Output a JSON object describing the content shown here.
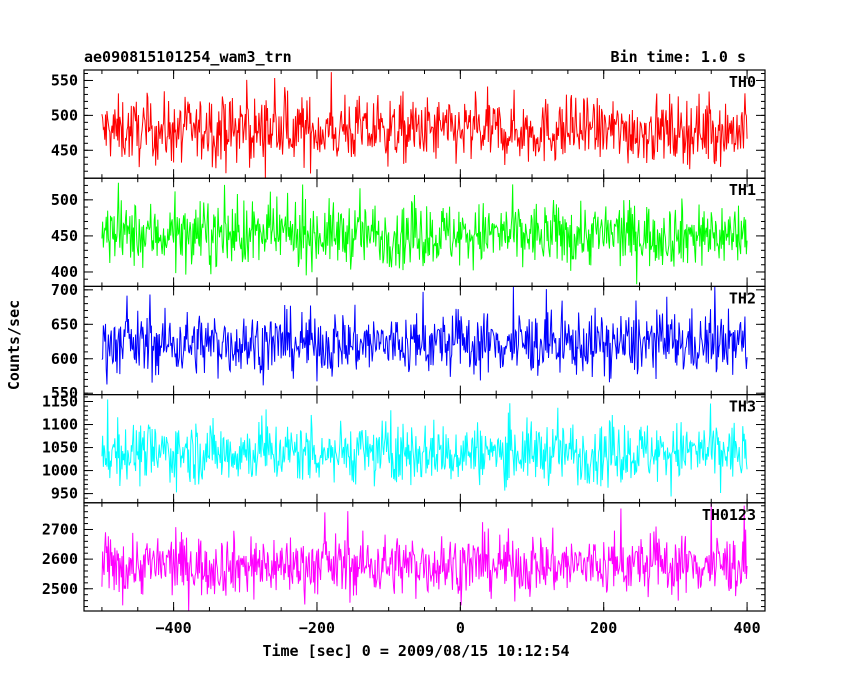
{
  "header": {
    "title": "ae090815101254_wam3_trn",
    "bin_time": "Bin time: 1.0 s"
  },
  "chart_data": {
    "type": "line",
    "xlabel": "Time [sec] 0 = 2009/08/15 10:12:54",
    "ylabel": "Counts/sec",
    "x_range": [
      -500,
      400
    ],
    "xlim": [
      -525,
      425
    ],
    "x_ticks": [
      -400,
      -200,
      0,
      200,
      400
    ],
    "x_tick_labels": [
      "−400",
      "−200",
      "0",
      "200",
      "400"
    ],
    "bin_seconds": 1.0,
    "panels": [
      {
        "name": "TH0",
        "color": "#ff0000",
        "ylim": [
          410,
          565
        ],
        "mean": 478,
        "noise_amp": 30,
        "spike_range": [
          445,
          570
        ],
        "y_ticks": [
          450,
          500,
          550
        ],
        "y_tick_labels": [
          "450",
          "500",
          "550"
        ]
      },
      {
        "name": "TH1",
        "color": "#00ff00",
        "ylim": [
          380,
          530
        ],
        "mean": 452,
        "noise_amp": 28,
        "spike_range": [
          400,
          530
        ],
        "y_ticks": [
          400,
          450,
          500
        ],
        "y_tick_labels": [
          "400",
          "450",
          "500"
        ]
      },
      {
        "name": "TH2",
        "color": "#0000ff",
        "ylim": [
          548,
          705
        ],
        "mean": 622,
        "noise_amp": 29,
        "spike_range": [
          560,
          705
        ],
        "y_ticks": [
          550,
          600,
          650,
          700
        ],
        "y_tick_labels": [
          "550",
          "600",
          "650",
          "700"
        ]
      },
      {
        "name": "TH3",
        "color": "#00ffff",
        "ylim": [
          930,
          1165
        ],
        "mean": 1040,
        "noise_amp": 42,
        "spike_range": [
          940,
          1160
        ],
        "y_ticks": [
          950,
          1000,
          1050,
          1100,
          1150
        ],
        "y_tick_labels": [
          "950",
          "1000",
          "1050",
          "1100",
          "1150"
        ]
      },
      {
        "name": "TH0123",
        "color": "#ff00ff",
        "ylim": [
          2425,
          2790
        ],
        "mean": 2580,
        "noise_amp": 65,
        "spike_range": [
          2440,
          2790
        ],
        "y_ticks": [
          2500,
          2600,
          2700
        ],
        "y_tick_labels": [
          "2500",
          "2600",
          "2700"
        ]
      }
    ]
  }
}
